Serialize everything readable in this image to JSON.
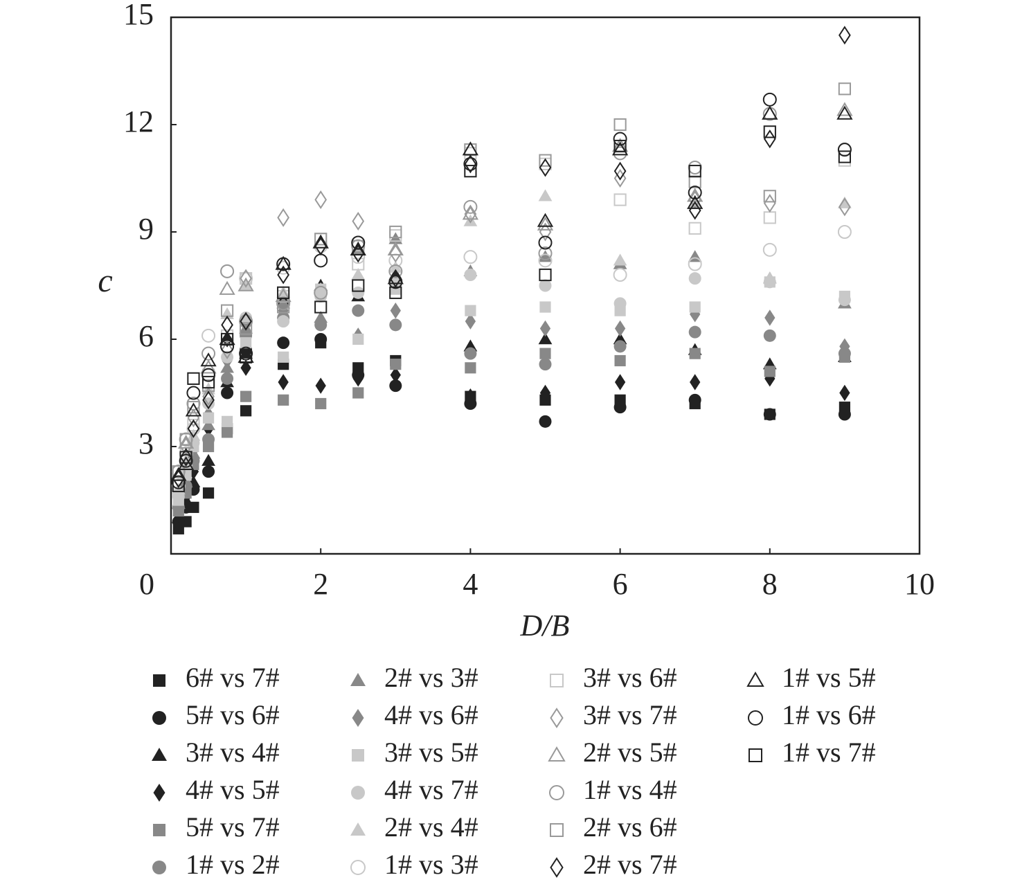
{
  "chart_data": {
    "type": "scatter",
    "x_label": "D/B",
    "y_label": "c",
    "xlim": [
      0,
      10
    ],
    "ylim": [
      0,
      15
    ],
    "xticks": [
      0,
      2,
      4,
      6,
      8,
      10
    ],
    "yticks": [
      3,
      6,
      9,
      12,
      15
    ],
    "x": [
      0.1,
      0.2,
      0.3,
      0.5,
      0.75,
      1,
      1.5,
      2,
      2.5,
      3,
      4,
      5,
      6,
      7,
      8,
      9
    ],
    "series": [
      {
        "name": "6# vs 7#",
        "color": "#222222",
        "marker": "square",
        "filled": true,
        "values": [
          0.7,
          0.9,
          1.3,
          1.7,
          3.5,
          4.0,
          5.3,
          5.9,
          5.2,
          5.4,
          4.4,
          4.3,
          4.3,
          4.2,
          3.9,
          4.1
        ]
      },
      {
        "name": "5# vs 6#",
        "color": "#222222",
        "marker": "circle",
        "filled": true,
        "values": [
          0.9,
          1.3,
          1.8,
          2.3,
          4.5,
          5.7,
          5.9,
          6.0,
          5.0,
          4.7,
          4.2,
          3.7,
          4.1,
          4.3,
          3.9,
          3.9
        ]
      },
      {
        "name": "3# vs 4#",
        "color": "#222222",
        "marker": "triangle",
        "filled": true,
        "values": [
          1.0,
          1.5,
          2.0,
          2.6,
          4.8,
          5.6,
          7.1,
          7.5,
          7.2,
          7.8,
          5.8,
          6.0,
          6.0,
          5.7,
          5.3,
          5.5
        ]
      },
      {
        "name": "4# vs 5#",
        "color": "#222222",
        "marker": "diamond",
        "filled": true,
        "values": [
          1.1,
          1.6,
          2.3,
          3.5,
          6.0,
          5.2,
          4.8,
          4.7,
          4.9,
          5.0,
          4.4,
          4.5,
          4.8,
          4.8,
          4.9,
          4.5
        ]
      },
      {
        "name": "5# vs 7#",
        "color": "#888888",
        "marker": "square",
        "filled": true,
        "values": [
          1.2,
          1.7,
          2.5,
          3.0,
          3.4,
          4.4,
          4.3,
          4.2,
          4.5,
          5.3,
          5.2,
          5.6,
          5.4,
          5.6,
          5.1,
          5.5
        ]
      },
      {
        "name": "1# vs 2#",
        "color": "#888888",
        "marker": "circle",
        "filled": true,
        "values": [
          1.3,
          1.9,
          2.6,
          3.2,
          4.9,
          6.1,
          6.6,
          6.4,
          6.8,
          6.4,
          5.6,
          5.3,
          5.8,
          6.2,
          6.1,
          5.6
        ]
      },
      {
        "name": "2# vs 3#",
        "color": "#888888",
        "marker": "triangle",
        "filled": true,
        "values": [
          1.4,
          2.0,
          2.8,
          3.6,
          5.2,
          6.3,
          7.0,
          6.6,
          8.5,
          8.8,
          7.9,
          8.3,
          8.1,
          8.3,
          7.7,
          7.0
        ]
      },
      {
        "name": "4# vs 6#",
        "color": "#888888",
        "marker": "diamond",
        "filled": true,
        "values": [
          1.4,
          2.1,
          2.9,
          3.9,
          5.4,
          6.4,
          6.8,
          7.3,
          6.1,
          6.8,
          6.5,
          6.3,
          6.3,
          6.7,
          6.6,
          5.8
        ]
      },
      {
        "name": "3# vs 5#",
        "color": "#c8c8c8",
        "marker": "square",
        "filled": true,
        "values": [
          1.5,
          2.2,
          3.0,
          3.8,
          3.7,
          5.9,
          5.5,
          7.4,
          6.0,
          7.4,
          6.8,
          6.9,
          6.8,
          6.9,
          7.6,
          7.2
        ]
      },
      {
        "name": "4# vs 7#",
        "color": "#c8c8c8",
        "marker": "circle",
        "filled": true,
        "values": [
          1.6,
          2.4,
          3.1,
          4.2,
          5.5,
          6.6,
          6.5,
          7.2,
          7.3,
          7.6,
          7.8,
          7.5,
          7.0,
          7.7,
          7.6,
          7.1
        ]
      },
      {
        "name": "2# vs 4#",
        "color": "#c8c8c8",
        "marker": "triangle",
        "filled": true,
        "values": [
          1.8,
          2.6,
          3.3,
          4.6,
          6.7,
          7.5,
          7.3,
          7.4,
          7.8,
          8.0,
          9.3,
          10.0,
          8.2,
          9.8,
          7.7,
          9.8
        ]
      },
      {
        "name": "1# vs 3#",
        "color": "#c8c8c8",
        "marker": "circle",
        "filled": false,
        "values": [
          1.9,
          2.8,
          3.5,
          6.1,
          7.9,
          7.7,
          8.0,
          8.6,
          8.3,
          8.2,
          8.3,
          8.2,
          7.8,
          8.1,
          8.5,
          9.0
        ]
      },
      {
        "name": "3# vs 6#",
        "color": "#c8c8c8",
        "marker": "square",
        "filled": false,
        "values": [
          2.0,
          2.9,
          3.6,
          5.0,
          6.1,
          7.7,
          7.2,
          8.8,
          8.1,
          8.9,
          11.2,
          10.9,
          9.9,
          9.1,
          9.4,
          11.0
        ]
      },
      {
        "name": "3# vs 7#",
        "color": "#999999",
        "marker": "diamond",
        "filled": false,
        "values": [
          2.1,
          3.0,
          3.8,
          4.4,
          5.7,
          7.7,
          9.4,
          9.9,
          9.3,
          8.4,
          9.5,
          9.0,
          10.5,
          9.9,
          9.8,
          9.7
        ]
      },
      {
        "name": "2# vs 5#",
        "color": "#999999",
        "marker": "triangle",
        "filled": false,
        "values": [
          2.2,
          3.1,
          4.0,
          5.2,
          7.4,
          7.5,
          7.2,
          8.7,
          8.5,
          8.5,
          9.5,
          9.2,
          11.4,
          10.0,
          12.3,
          12.4
        ]
      },
      {
        "name": "1# vs 4#",
        "color": "#999999",
        "marker": "circle",
        "filled": false,
        "values": [
          2.3,
          3.2,
          4.2,
          5.6,
          7.9,
          6.5,
          7.0,
          7.3,
          8.6,
          7.9,
          9.7,
          8.4,
          11.2,
          10.8,
          12.3,
          11.3
        ]
      },
      {
        "name": "2# vs 6#",
        "color": "#999999",
        "marker": "square",
        "filled": false,
        "values": [
          2.3,
          3.2,
          4.1,
          4.7,
          6.8,
          6.3,
          6.9,
          8.8,
          8.6,
          9.0,
          11.3,
          11.0,
          12.0,
          10.4,
          10.0,
          13.0
        ]
      },
      {
        "name": "2# vs 7#",
        "color": "#222222",
        "marker": "diamond",
        "filled": false,
        "values": [
          2.1,
          2.7,
          3.5,
          4.3,
          6.4,
          6.5,
          7.8,
          8.6,
          8.4,
          7.7,
          10.9,
          10.8,
          10.7,
          9.6,
          11.6,
          14.5
        ]
      },
      {
        "name": "1# vs 5#",
        "color": "#222222",
        "marker": "triangle",
        "filled": false,
        "values": [
          2.2,
          2.5,
          4.0,
          5.4,
          6.0,
          5.5,
          8.1,
          8.7,
          8.5,
          7.7,
          11.3,
          9.3,
          11.3,
          9.8,
          12.3,
          12.3
        ]
      },
      {
        "name": "1# vs 6#",
        "color": "#222222",
        "marker": "circle",
        "filled": false,
        "values": [
          2.0,
          2.6,
          4.5,
          5.0,
          5.8,
          5.6,
          8.1,
          8.2,
          8.7,
          7.6,
          10.9,
          8.7,
          11.6,
          10.1,
          12.7,
          11.3
        ]
      },
      {
        "name": "1# vs 7#",
        "color": "#222222",
        "marker": "square",
        "filled": false,
        "values": [
          1.9,
          2.7,
          4.9,
          4.8,
          6.0,
          5.5,
          7.3,
          6.9,
          7.5,
          7.3,
          10.7,
          7.8,
          11.4,
          10.7,
          11.8,
          11.1
        ]
      }
    ]
  }
}
